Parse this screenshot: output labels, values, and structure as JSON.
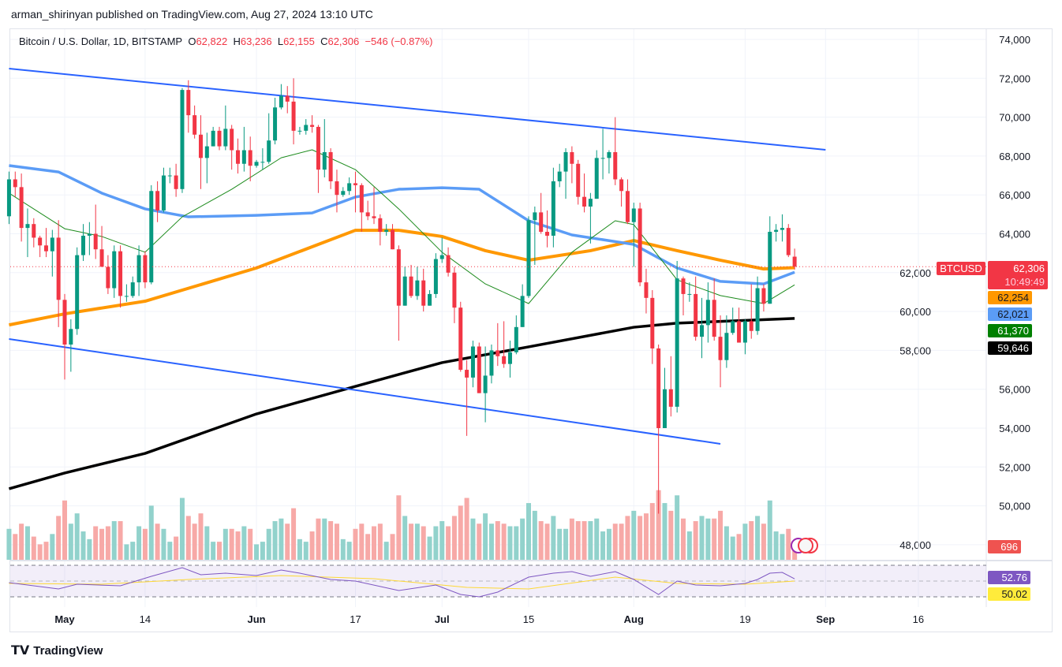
{
  "publisher_line": "arman_shirinyan published on TradingView.com, Aug 27, 2024 13:10 UTC",
  "legend": {
    "symbol": "Bitcoin / U.S. Dollar, 1D, BITSTAMP",
    "o_label": "O",
    "o": "62,822",
    "h_label": "H",
    "h": "63,236",
    "l_label": "L",
    "l": "62,155",
    "c_label": "C",
    "c": "62,306",
    "change": "−546 (−0.87%)"
  },
  "brand": "TradingView",
  "colors": {
    "up": "#089981",
    "down": "#f23645",
    "vol_up": "#92d2cc",
    "vol_down": "#f7a9a7",
    "ma_black": "#000000",
    "ma_orange": "#ff9800",
    "ma_blue": "#5b9cf6",
    "ma_green": "#1b8a1b",
    "trend": "#2962ff",
    "rsi": "#7e57c2",
    "rsi_ma": "#fdd835"
  },
  "price_tags": {
    "symbol": "BTCUSD",
    "last": "62,306",
    "countdown": "10:49:49",
    "ma_orange": "62,254",
    "ma_blue": "62,021",
    "ma_green": "61,370",
    "ma_black": "59,646",
    "volume": "696",
    "rsi": "52.76",
    "rsi_ma": "50.02"
  },
  "chart_data": {
    "type": "candlestick",
    "ylim": [
      47000,
      75000
    ],
    "y_ticks": [
      "74,000",
      "72,000",
      "70,000",
      "68,000",
      "66,000",
      "64,000",
      "62,000",
      "60,000",
      "58,000",
      "56,000",
      "54,000",
      "52,000",
      "50,000",
      "48,000"
    ],
    "x_ticks": [
      {
        "date": "2024-05-01",
        "label": "May",
        "bold": true
      },
      {
        "date": "2024-05-14",
        "label": "14"
      },
      {
        "date": "2024-06-01",
        "label": "Jun",
        "bold": true
      },
      {
        "date": "2024-06-17",
        "label": "17"
      },
      {
        "date": "2024-07-01",
        "label": "Jul",
        "bold": true
      },
      {
        "date": "2024-07-15",
        "label": "15"
      },
      {
        "date": "2024-08-01",
        "label": "Aug",
        "bold": true
      },
      {
        "date": "2024-08-19",
        "label": "19"
      },
      {
        "date": "2024-09-01",
        "label": "Sep",
        "bold": true
      },
      {
        "date": "2024-09-16",
        "label": "16"
      }
    ],
    "start_date": "2024-04-22",
    "ohlc": [
      [
        64900,
        67200,
        64500,
        66800
      ],
      [
        66800,
        67200,
        65900,
        66400
      ],
      [
        66400,
        67100,
        63600,
        64300
      ],
      [
        64300,
        65300,
        62800,
        64500
      ],
      [
        64500,
        64800,
        63300,
        63800
      ],
      [
        63800,
        63900,
        62800,
        63400
      ],
      [
        63400,
        64300,
        62800,
        63100
      ],
      [
        63100,
        64200,
        61800,
        63800
      ],
      [
        63800,
        64700,
        59200,
        60600
      ],
      [
        60600,
        60900,
        56500,
        58300
      ],
      [
        58300,
        59600,
        56900,
        59100
      ],
      [
        59100,
        63300,
        58800,
        62900
      ],
      [
        62900,
        64500,
        62600,
        63900
      ],
      [
        63900,
        64600,
        62900,
        64000
      ],
      [
        64000,
        65500,
        62700,
        63200
      ],
      [
        63200,
        64400,
        62300,
        62300
      ],
      [
        62300,
        62900,
        60900,
        61200
      ],
      [
        61200,
        63400,
        60700,
        63100
      ],
      [
        63100,
        63400,
        60200,
        60800
      ],
      [
        60800,
        61400,
        60500,
        60800
      ],
      [
        60800,
        61800,
        60700,
        61500
      ],
      [
        61500,
        63400,
        60800,
        62900
      ],
      [
        62900,
        63100,
        61200,
        61500
      ],
      [
        61500,
        66500,
        61400,
        66200
      ],
      [
        66200,
        66700,
        64600,
        65200
      ],
      [
        65200,
        67400,
        65100,
        67000
      ],
      [
        67000,
        67400,
        66600,
        67000
      ],
      [
        67000,
        67600,
        65900,
        66300
      ],
      [
        66300,
        71500,
        66100,
        71400
      ],
      [
        71400,
        71900,
        69200,
        70100
      ],
      [
        70100,
        70600,
        68900,
        69100
      ],
      [
        69100,
        70100,
        66300,
        67900
      ],
      [
        67900,
        69200,
        66600,
        68500
      ],
      [
        68500,
        69500,
        68500,
        69300
      ],
      [
        69300,
        69500,
        68300,
        68500
      ],
      [
        68500,
        70600,
        68300,
        69400
      ],
      [
        69400,
        69600,
        67300,
        68300
      ],
      [
        68300,
        68900,
        67100,
        67600
      ],
      [
        67600,
        69500,
        67200,
        68300
      ],
      [
        68300,
        69000,
        66700,
        67500
      ],
      [
        67500,
        67800,
        67400,
        67700
      ],
      [
        67700,
        68400,
        67300,
        67700
      ],
      [
        67700,
        70200,
        67600,
        68800
      ],
      [
        68800,
        71000,
        68600,
        70500
      ],
      [
        70500,
        71700,
        70400,
        71100
      ],
      [
        71100,
        71600,
        70200,
        70800
      ],
      [
        70800,
        72000,
        68600,
        69300
      ],
      [
        69300,
        69500,
        69100,
        69300
      ],
      [
        69300,
        69900,
        69100,
        69600
      ],
      [
        69600,
        70100,
        69200,
        69500
      ],
      [
        69500,
        69600,
        66100,
        67300
      ],
      [
        67300,
        69900,
        66900,
        68200
      ],
      [
        68200,
        68400,
        66300,
        66700
      ],
      [
        66700,
        67300,
        65100,
        66000
      ],
      [
        66000,
        66400,
        65900,
        66200
      ],
      [
        66200,
        66900,
        66000,
        66600
      ],
      [
        66600,
        67200,
        65100,
        66500
      ],
      [
        66500,
        66600,
        64100,
        65100
      ],
      [
        65100,
        65700,
        64700,
        64900
      ],
      [
        64900,
        66400,
        64500,
        64800
      ],
      [
        64800,
        65000,
        63400,
        64100
      ],
      [
        64100,
        64500,
        63900,
        64200
      ],
      [
        64200,
        64500,
        63200,
        63200
      ],
      [
        63200,
        63400,
        58500,
        60300
      ],
      [
        60300,
        62300,
        60300,
        61800
      ],
      [
        61800,
        62400,
        60700,
        60800
      ],
      [
        60800,
        62300,
        60600,
        61600
      ],
      [
        61600,
        62200,
        60000,
        60300
      ],
      [
        60300,
        61100,
        60300,
        60900
      ],
      [
        60900,
        63000,
        60700,
        62700
      ],
      [
        62700,
        63800,
        62500,
        62900
      ],
      [
        62900,
        63300,
        61800,
        62000
      ],
      [
        62000,
        62300,
        59400,
        60200
      ],
      [
        60200,
        60500,
        56900,
        57000
      ],
      [
        57000,
        57500,
        53600,
        56600
      ],
      [
        56600,
        58500,
        56100,
        58200
      ],
      [
        58200,
        58400,
        55800,
        55800
      ],
      [
        55800,
        58200,
        54300,
        56700
      ],
      [
        56700,
        58300,
        56300,
        58000
      ],
      [
        58000,
        59400,
        57200,
        57700
      ],
      [
        57700,
        59500,
        57100,
        57300
      ],
      [
        57300,
        58500,
        56600,
        57900
      ],
      [
        57900,
        59800,
        57800,
        59200
      ],
      [
        59200,
        61400,
        59200,
        60800
      ],
      [
        60800,
        64900,
        60700,
        64700
      ],
      [
        64700,
        65400,
        62400,
        65100
      ],
      [
        65100,
        66100,
        64000,
        64100
      ],
      [
        64100,
        65200,
        63300,
        63900
      ],
      [
        63900,
        67400,
        63300,
        66700
      ],
      [
        66700,
        67600,
        66400,
        67200
      ],
      [
        67200,
        68400,
        65800,
        68200
      ],
      [
        68200,
        68500,
        66600,
        67600
      ],
      [
        67600,
        67800,
        65500,
        65900
      ],
      [
        65900,
        67100,
        65100,
        65400
      ],
      [
        65400,
        66100,
        63500,
        65800
      ],
      [
        65800,
        68300,
        65800,
        67900
      ],
      [
        67900,
        69400,
        66800,
        67900
      ],
      [
        67900,
        68300,
        67100,
        68200
      ],
      [
        68200,
        70000,
        66500,
        66800
      ],
      [
        66800,
        66900,
        65400,
        66200
      ],
      [
        66200,
        66800,
        64500,
        64600
      ],
      [
        64600,
        65600,
        62300,
        65300
      ],
      [
        65300,
        65600,
        61300,
        61500
      ],
      [
        61500,
        62200,
        59900,
        60700
      ],
      [
        60700,
        61100,
        57300,
        58100
      ],
      [
        58100,
        58300,
        49600,
        54000
      ],
      [
        54000,
        57100,
        54000,
        56000
      ],
      [
        56000,
        57700,
        54600,
        55100
      ],
      [
        55100,
        62600,
        54800,
        61700
      ],
      [
        61700,
        61800,
        59800,
        60900
      ],
      [
        60900,
        61500,
        60500,
        60900
      ],
      [
        60900,
        61800,
        58500,
        58700
      ],
      [
        58700,
        60700,
        57600,
        59300
      ],
      [
        59300,
        61500,
        58400,
        60600
      ],
      [
        60600,
        61700,
        58500,
        58700
      ],
      [
        58700,
        59800,
        56100,
        57500
      ],
      [
        57500,
        59800,
        57100,
        58900
      ],
      [
        58900,
        60200,
        58800,
        59500
      ],
      [
        59500,
        60200,
        58400,
        58400
      ],
      [
        58400,
        59600,
        57800,
        59500
      ],
      [
        59500,
        61400,
        58600,
        59000
      ],
      [
        59000,
        61800,
        58800,
        61200
      ],
      [
        61200,
        61400,
        60000,
        60400
      ],
      [
        60400,
        64900,
        60400,
        64100
      ],
      [
        64100,
        64500,
        63600,
        64200
      ],
      [
        64200,
        65000,
        63600,
        64300
      ],
      [
        64300,
        64500,
        62800,
        62900
      ],
      [
        62822,
        63236,
        62155,
        62306
      ]
    ],
    "volume": [
      1200,
      1000,
      1400,
      1300,
      900,
      600,
      700,
      1000,
      1700,
      2300,
      1400,
      1800,
      1100,
      800,
      1300,
      1200,
      1300,
      1500,
      1500,
      600,
      700,
      1300,
      1200,
      2100,
      1400,
      1200,
      700,
      900,
      2400,
      1700,
      1400,
      1800,
      1300,
      700,
      700,
      1200,
      1200,
      1100,
      1300,
      1200,
      600,
      700,
      1200,
      1500,
      1600,
      1400,
      2000,
      800,
      700,
      1100,
      1600,
      1600,
      1500,
      1400,
      800,
      700,
      1200,
      1400,
      1000,
      1300,
      1400,
      700,
      1000,
      2500,
      1700,
      1400,
      1400,
      1300,
      900,
      1300,
      1500,
      1300,
      1700,
      2100,
      2400,
      1600,
      1400,
      1800,
      1400,
      1500,
      1400,
      1300,
      1300,
      1600,
      2200,
      1900,
      1500,
      1400,
      1700,
      1200,
      1200,
      1600,
      1500,
      1500,
      1500,
      1600,
      1100,
      1200,
      1400,
      1400,
      1700,
      1900,
      1700,
      1800,
      2200,
      2700,
      2200,
      1900,
      2500,
      1600,
      1100,
      1500,
      1700,
      1600,
      1600,
      1900,
      1300,
      900,
      1000,
      1400,
      1500,
      1700,
      1400,
      2300,
      1100,
      1000,
      1200,
      696
    ],
    "ma_black": [
      [
        "2024-04-22",
        50880
      ],
      [
        "2024-05-01",
        51690
      ],
      [
        "2024-05-14",
        52700
      ],
      [
        "2024-06-01",
        54730
      ],
      [
        "2024-06-17",
        56150
      ],
      [
        "2024-07-01",
        57370
      ],
      [
        "2024-07-15",
        58180
      ],
      [
        "2024-08-01",
        59190
      ],
      [
        "2024-08-08",
        59400
      ],
      [
        "2024-08-27",
        59646
      ]
    ],
    "ma_orange": [
      [
        "2024-04-22",
        59310
      ],
      [
        "2024-05-01",
        59880
      ],
      [
        "2024-05-14",
        60530
      ],
      [
        "2024-06-01",
        62240
      ],
      [
        "2024-06-17",
        64180
      ],
      [
        "2024-06-24",
        64180
      ],
      [
        "2024-07-01",
        63860
      ],
      [
        "2024-07-08",
        63130
      ],
      [
        "2024-07-15",
        62640
      ],
      [
        "2024-07-25",
        63130
      ],
      [
        "2024-08-01",
        63650
      ],
      [
        "2024-08-08",
        63130
      ],
      [
        "2024-08-15",
        62640
      ],
      [
        "2024-08-22",
        62190
      ],
      [
        "2024-08-27",
        62254
      ]
    ],
    "ma_blue": [
      [
        "2024-04-22",
        67510
      ],
      [
        "2024-04-30",
        67180
      ],
      [
        "2024-05-07",
        66090
      ],
      [
        "2024-05-14",
        65280
      ],
      [
        "2024-05-21",
        64870
      ],
      [
        "2024-06-01",
        64950
      ],
      [
        "2024-06-10",
        65070
      ],
      [
        "2024-06-17",
        65890
      ],
      [
        "2024-06-24",
        66290
      ],
      [
        "2024-07-01",
        66370
      ],
      [
        "2024-07-07",
        66290
      ],
      [
        "2024-07-15",
        64670
      ],
      [
        "2024-07-22",
        63940
      ],
      [
        "2024-08-01",
        63450
      ],
      [
        "2024-08-08",
        62240
      ],
      [
        "2024-08-15",
        61550
      ],
      [
        "2024-08-22",
        61420
      ],
      [
        "2024-08-27",
        62021
      ]
    ],
    "ma_green": [
      [
        "2024-04-22",
        66090
      ],
      [
        "2024-05-01",
        64260
      ],
      [
        "2024-05-07",
        63860
      ],
      [
        "2024-05-14",
        63050
      ],
      [
        "2024-05-20",
        64870
      ],
      [
        "2024-05-28",
        66290
      ],
      [
        "2024-06-05",
        67910
      ],
      [
        "2024-06-10",
        68320
      ],
      [
        "2024-06-17",
        67300
      ],
      [
        "2024-06-24",
        65280
      ],
      [
        "2024-07-01",
        63050
      ],
      [
        "2024-07-08",
        61420
      ],
      [
        "2024-07-15",
        60410
      ],
      [
        "2024-07-22",
        63050
      ],
      [
        "2024-07-29",
        64670
      ],
      [
        "2024-08-01",
        64470
      ],
      [
        "2024-08-08",
        61630
      ],
      [
        "2024-08-15",
        60820
      ],
      [
        "2024-08-22",
        60410
      ],
      [
        "2024-08-27",
        61370
      ]
    ],
    "trendlines": [
      [
        [
          "2024-04-22",
          72500
        ],
        [
          "2024-09-01",
          68320
        ]
      ],
      [
        [
          "2024-04-22",
          58585
        ],
        [
          "2024-08-15",
          53190
        ]
      ]
    ],
    "rsi": [
      [
        "2024-04-22",
        48
      ],
      [
        "2024-04-30",
        40
      ],
      [
        "2024-05-03",
        46
      ],
      [
        "2024-05-10",
        44
      ],
      [
        "2024-05-15",
        56
      ],
      [
        "2024-05-20",
        67
      ],
      [
        "2024-05-23",
        58
      ],
      [
        "2024-05-27",
        60
      ],
      [
        "2024-06-01",
        57
      ],
      [
        "2024-06-05",
        64
      ],
      [
        "2024-06-08",
        60
      ],
      [
        "2024-06-13",
        52
      ],
      [
        "2024-06-17",
        50
      ],
      [
        "2024-06-24",
        38
      ],
      [
        "2024-06-30",
        45
      ],
      [
        "2024-07-04",
        33
      ],
      [
        "2024-07-07",
        30
      ],
      [
        "2024-07-10",
        36
      ],
      [
        "2024-07-15",
        55
      ],
      [
        "2024-07-19",
        60
      ],
      [
        "2024-07-22",
        62
      ],
      [
        "2024-07-25",
        56
      ],
      [
        "2024-07-29",
        62
      ],
      [
        "2024-08-01",
        52
      ],
      [
        "2024-08-05",
        33
      ],
      [
        "2024-08-08",
        50
      ],
      [
        "2024-08-11",
        45
      ],
      [
        "2024-08-15",
        44
      ],
      [
        "2024-08-19",
        47
      ],
      [
        "2024-08-21",
        52
      ],
      [
        "2024-08-23",
        60
      ],
      [
        "2024-08-25",
        61
      ],
      [
        "2024-08-27",
        52.76
      ]
    ],
    "rsi_ma": [
      [
        "2024-04-22",
        47
      ],
      [
        "2024-05-07",
        46
      ],
      [
        "2024-05-21",
        52
      ],
      [
        "2024-06-05",
        57
      ],
      [
        "2024-06-20",
        53
      ],
      [
        "2024-07-05",
        42
      ],
      [
        "2024-07-15",
        40
      ],
      [
        "2024-07-29",
        55
      ],
      [
        "2024-08-08",
        47
      ],
      [
        "2024-08-19",
        46
      ],
      [
        "2024-08-27",
        50.02
      ]
    ],
    "rsi_bands": [
      70,
      50,
      30
    ]
  }
}
